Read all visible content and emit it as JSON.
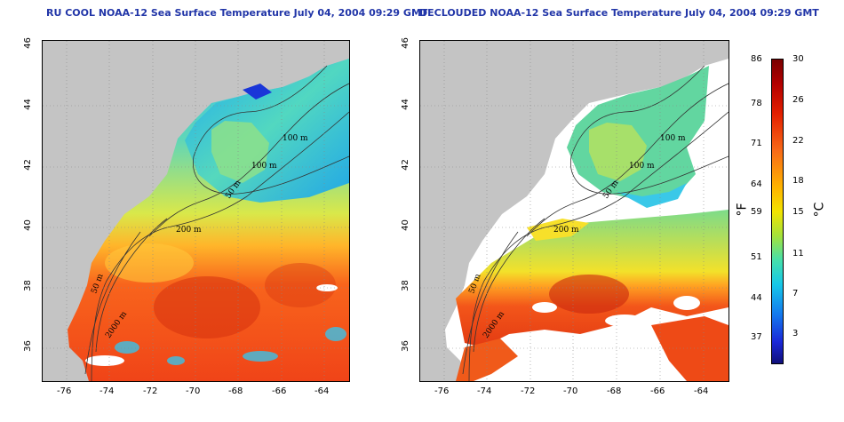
{
  "panels": [
    {
      "title": "RU COOL NOAA-12 Sea Surface Temperature July 04, 2004 09:29 GMT",
      "contours": [
        "100 m",
        "100 m",
        "50 m",
        "200 m",
        "50 m",
        "2000 m"
      ]
    },
    {
      "title": "DECLOUDED NOAA-12 Sea Surface Temperature July 04, 2004 09:29 GMT",
      "contours": [
        "100 m",
        "100 m",
        "50 m",
        "200 m",
        "50 m",
        "2000 m"
      ]
    }
  ],
  "axes": {
    "x_ticks": [
      "-76",
      "-74",
      "-72",
      "-70",
      "-68",
      "-66",
      "-64"
    ],
    "y_ticks": [
      "36",
      "38",
      "40",
      "42",
      "44",
      "46"
    ]
  },
  "colorbar": {
    "f_unit": "°F",
    "c_unit": "°C",
    "f_ticks": [
      "86",
      "78",
      "71",
      "64",
      "59",
      "51",
      "44",
      "37"
    ],
    "c_ticks": [
      "30",
      "26",
      "22",
      "18",
      "15",
      "11",
      "7",
      "3"
    ],
    "colors": [
      "#7a0000",
      "#b30000",
      "#e32000",
      "#f86a18",
      "#ffb300",
      "#f2e300",
      "#a5e23a",
      "#46e0aa",
      "#16c8e8",
      "#1378ee",
      "#1b27d8",
      "#10107a"
    ]
  }
}
